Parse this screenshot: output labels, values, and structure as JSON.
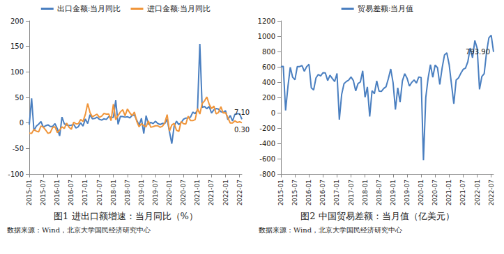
{
  "chart_data": [
    {
      "type": "line",
      "title": "图1 进出口额增速：当月同比（%）",
      "source": "数据来源：Wind，北京大学国民经济研究中心",
      "categories": [
        "2015-01",
        null,
        null,
        null,
        null,
        null,
        "2015-07",
        null,
        null,
        null,
        null,
        null,
        "2016-01",
        null,
        null,
        null,
        null,
        null,
        "2016-07",
        null,
        null,
        null,
        null,
        null,
        "2017-01",
        null,
        null,
        null,
        null,
        null,
        "2017-07",
        null,
        null,
        null,
        null,
        null,
        "2018-01",
        null,
        null,
        null,
        null,
        null,
        "2018-07",
        null,
        null,
        null,
        null,
        null,
        "2019-01",
        null,
        null,
        null,
        null,
        null,
        "2019-07",
        null,
        null,
        null,
        null,
        null,
        "2020-01",
        null,
        null,
        null,
        null,
        null,
        "2020-07",
        null,
        null,
        null,
        null,
        null,
        "2021-01",
        null,
        null,
        null,
        null,
        null,
        "2021-07",
        null,
        null,
        null,
        null,
        null,
        "2022-01",
        null,
        null,
        null,
        null,
        null,
        "2022-07",
        null
      ],
      "series": [
        {
          "name": "出口金额:当月同比",
          "color": "#4a7fc0",
          "values": [
            -3.3,
            48.3,
            -15.0,
            -6.4,
            -2.5,
            2.8,
            -8.3,
            -5.5,
            -3.7,
            -6.9,
            -6.8,
            -1.4,
            -11.2,
            -25.4,
            11.5,
            -1.8,
            -4.1,
            -4.8,
            -4.4,
            -2.8,
            -10.0,
            -7.3,
            0.1,
            -6.1,
            7.9,
            -1.3,
            16.4,
            8.0,
            8.7,
            11.3,
            7.2,
            5.5,
            8.1,
            6.9,
            12.3,
            10.9,
            11.1,
            44.5,
            -2.7,
            12.9,
            12.6,
            11.3,
            12.2,
            9.8,
            14.5,
            15.6,
            5.4,
            -4.4,
            9.1,
            -20.7,
            14.2,
            -2.7,
            1.1,
            -1.3,
            3.3,
            -1.0,
            -3.2,
            -0.9,
            -1.1,
            7.6,
            -17.2,
            -40.6,
            -6.6,
            3.5,
            -3.3,
            0.5,
            7.2,
            9.5,
            9.9,
            11.4,
            21.1,
            18.1,
            24.9,
            154.9,
            30.6,
            32.3,
            27.9,
            32.2,
            19.3,
            25.6,
            28.1,
            27.1,
            22.0,
            20.9,
            24.1,
            6.2,
            14.7,
            3.9,
            16.9,
            17.9,
            18.0,
            7.1
          ]
        },
        {
          "name": "进口金额:当月同比",
          "color": "#f0953a",
          "values": [
            -19.9,
            -20.5,
            -12.7,
            -16.2,
            -17.6,
            -6.1,
            -8.1,
            -13.8,
            -20.4,
            -18.8,
            -8.7,
            -7.6,
            -18.8,
            -13.8,
            -7.6,
            -10.9,
            -0.4,
            -8.4,
            -12.5,
            1.5,
            -1.9,
            -1.4,
            6.7,
            3.1,
            16.7,
            38.1,
            20.3,
            11.9,
            14.8,
            17.2,
            11.0,
            13.3,
            18.7,
            17.2,
            17.7,
            4.5,
            36.9,
            6.3,
            14.4,
            21.5,
            26.0,
            14.1,
            27.3,
            20.0,
            14.3,
            21.4,
            3.0,
            -7.6,
            -1.5,
            -5.2,
            -7.6,
            4.0,
            -8.5,
            -7.3,
            -5.6,
            -5.6,
            -8.5,
            -6.4,
            0.3,
            16.3,
            -16.0,
            -4.0,
            -0.9,
            -14.2,
            -16.7,
            2.7,
            -1.4,
            -2.1,
            13.2,
            4.7,
            4.5,
            6.5,
            28.0,
            17.3,
            38.1,
            43.1,
            51.1,
            36.7,
            28.1,
            33.1,
            17.6,
            20.6,
            31.7,
            19.5,
            20.1,
            10.4,
            -0.1,
            0.0,
            4.1,
            1.0,
            2.3,
            0.3
          ]
        }
      ],
      "annotations": [
        {
          "series": "出口金额:当月同比",
          "text": "7.10",
          "value": 7.1
        },
        {
          "series": "进口金额:当月同比",
          "text": "0.30",
          "value": 0.3
        }
      ],
      "ylim": [
        -100,
        200
      ],
      "yticks": [
        -100,
        -50,
        0,
        50,
        100,
        150,
        200
      ],
      "grid": false,
      "legend": "top"
    },
    {
      "type": "line",
      "title": "图2 中国贸易差额：当月值（亿美元）",
      "source": "数据来源：Wind，北京大学国民经济研究中心",
      "categories": [
        "2015-01",
        null,
        null,
        null,
        null,
        null,
        "2015-07",
        null,
        null,
        null,
        null,
        null,
        "2016-01",
        null,
        null,
        null,
        null,
        null,
        "2016-07",
        null,
        null,
        null,
        null,
        null,
        "2017-01",
        null,
        null,
        null,
        null,
        null,
        "2017-07",
        null,
        null,
        null,
        null,
        null,
        "2018-01",
        null,
        null,
        null,
        null,
        null,
        "2018-07",
        null,
        null,
        null,
        null,
        null,
        "2019-01",
        null,
        null,
        null,
        null,
        null,
        "2019-07",
        null,
        null,
        null,
        null,
        null,
        "2020-01",
        null,
        null,
        null,
        null,
        null,
        "2020-07",
        null,
        null,
        null,
        null,
        null,
        "2021-01",
        null,
        null,
        null,
        null,
        null,
        "2021-07",
        null,
        null,
        null,
        null,
        null,
        "2022-01",
        null,
        null,
        null,
        null,
        null,
        "2022-07",
        null
      ],
      "series": [
        {
          "name": "贸易差额:当月值",
          "color": "#4a7fc0",
          "values": [
            600,
            607,
            31,
            341,
            594,
            465,
            430,
            602,
            603,
            616,
            541,
            601,
            632,
            326,
            298,
            455,
            500,
            481,
            523,
            520,
            420,
            490,
            446,
            407,
            513,
            -91,
            240,
            380,
            408,
            427,
            467,
            420,
            285,
            381,
            402,
            547,
            203,
            337,
            -50,
            287,
            249,
            416,
            281,
            279,
            317,
            340,
            447,
            572,
            392,
            41,
            326,
            138,
            417,
            510,
            450,
            348,
            397,
            428,
            387,
            467,
            460,
            -620,
            199,
            453,
            629,
            464,
            623,
            589,
            370,
            585,
            754,
            782,
            630,
            371,
            116,
            428,
            455,
            515,
            566,
            583,
            667,
            845,
            717,
            944,
            841,
            306,
            473,
            511,
            787,
            979,
            1012,
            793.9
          ]
        }
      ],
      "annotations": [
        {
          "series": "贸易差额:当月值",
          "text": "793.90",
          "value": 793.9
        }
      ],
      "ylim": [
        -800,
        1200
      ],
      "yticks": [
        -800,
        -600,
        -400,
        -200,
        0,
        200,
        400,
        600,
        800,
        1000,
        1200
      ],
      "grid": false,
      "legend": "top"
    }
  ]
}
